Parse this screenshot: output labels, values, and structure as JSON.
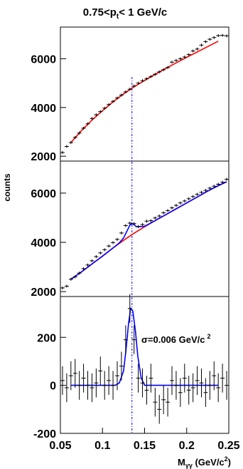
{
  "chart_data": [
    {
      "panel": "top",
      "type": "scatter",
      "title": "0.75<pt< 1 GeV/c",
      "title_parts": [
        "0.75<p",
        "t",
        "< 1 GeV/c"
      ],
      "ylim": [
        1800,
        7300
      ],
      "xlim": [
        0.05,
        0.25
      ],
      "y_ticks": [
        "2000",
        "4000",
        "6000"
      ],
      "y_tick_values": [
        2000,
        4000,
        6000
      ],
      "points": {
        "x": [
          0.0525,
          0.0575,
          0.0625,
          0.0675,
          0.0725,
          0.0775,
          0.0825,
          0.0875,
          0.0925,
          0.0975,
          0.1025,
          0.1075,
          0.1125,
          0.1175,
          0.1225,
          0.1275,
          0.1325,
          0.1375,
          0.1425,
          0.1475,
          0.1525,
          0.1575,
          0.1625,
          0.1675,
          0.1725,
          0.1775,
          0.1825,
          0.1875,
          0.1925,
          0.1975,
          0.2025,
          0.2075,
          0.2125,
          0.2175,
          0.2225,
          0.2275,
          0.2325,
          0.2375,
          0.2425,
          0.2475
        ],
        "y": [
          2150,
          2400,
          2560,
          2770,
          2950,
          3150,
          3330,
          3550,
          3700,
          3830,
          3970,
          4120,
          4250,
          4390,
          4510,
          4640,
          4750,
          4880,
          5000,
          5100,
          5180,
          5270,
          5360,
          5460,
          5550,
          5640,
          5860,
          5930,
          6000,
          6070,
          6170,
          6320,
          6400,
          6560,
          6700,
          6800,
          6870,
          6950,
          6960,
          6940
        ],
        "err": [
          60,
          60,
          60,
          60,
          60,
          60,
          60,
          60,
          60,
          60,
          60,
          60,
          60,
          60,
          60,
          60,
          60,
          60,
          60,
          60,
          60,
          60,
          60,
          60,
          60,
          60,
          60,
          60,
          60,
          60,
          60,
          60,
          60,
          60,
          60,
          60,
          60,
          60,
          60,
          60
        ]
      },
      "fit": {
        "color": "#ff0000",
        "x": [
          0.0625,
          0.075,
          0.0875,
          0.1,
          0.1125,
          0.125,
          0.1375,
          0.15,
          0.1625,
          0.175,
          0.1875,
          0.2,
          0.2125,
          0.225,
          0.2375
        ],
        "y": [
          2560,
          3050,
          3480,
          3870,
          4230,
          4560,
          4850,
          5110,
          5360,
          5600,
          5830,
          6060,
          6280,
          6500,
          6720
        ]
      },
      "marker_line_x": 0.135,
      "marker_line_color": "#0000ff"
    },
    {
      "panel": "middle",
      "type": "scatter",
      "ylim": [
        1800,
        7300
      ],
      "xlim": [
        0.05,
        0.25
      ],
      "y_ticks": [
        "2000",
        "4000",
        "6000"
      ],
      "y_tick_values": [
        2000,
        4000,
        6000
      ],
      "ylabel": "counts",
      "points": {
        "x": [
          0.0525,
          0.0575,
          0.0625,
          0.0675,
          0.0725,
          0.0775,
          0.0825,
          0.0875,
          0.0925,
          0.0975,
          0.1025,
          0.1075,
          0.1125,
          0.1175,
          0.1225,
          0.1275,
          0.1325,
          0.1375,
          0.1425,
          0.1475,
          0.1525,
          0.1575,
          0.1625,
          0.1675,
          0.1725,
          0.1775,
          0.1825,
          0.1875,
          0.1925,
          0.1975,
          0.2025,
          0.2075,
          0.2125,
          0.2175,
          0.2225,
          0.2275,
          0.2325,
          0.2375,
          0.2425,
          0.2475
        ],
        "y": [
          2150,
          2220,
          2500,
          2600,
          2750,
          2930,
          3080,
          3250,
          3420,
          3570,
          3700,
          3850,
          3990,
          4120,
          4380,
          4680,
          4780,
          4760,
          4640,
          4720,
          4860,
          4880,
          4990,
          5070,
          5200,
          5290,
          5400,
          5500,
          5600,
          5680,
          5770,
          5860,
          5950,
          6030,
          6110,
          6200,
          6280,
          6360,
          6440,
          6560
        ],
        "err": [
          60,
          60,
          60,
          60,
          60,
          60,
          60,
          60,
          60,
          60,
          60,
          60,
          60,
          60,
          60,
          60,
          60,
          60,
          60,
          60,
          60,
          60,
          60,
          60,
          60,
          60,
          60,
          60,
          60,
          60,
          60,
          60,
          60,
          60,
          60,
          60,
          60,
          60,
          60,
          60
        ]
      },
      "background_fit": {
        "color": "#ff0000",
        "x": [
          0.0625,
          0.075,
          0.0875,
          0.1,
          0.1125,
          0.125,
          0.1375,
          0.15,
          0.1625,
          0.175,
          0.1875,
          0.2,
          0.2125,
          0.225,
          0.2375,
          0.2475
        ],
        "y": [
          2500,
          2800,
          3120,
          3440,
          3770,
          4080,
          4370,
          4630,
          4880,
          5120,
          5360,
          5600,
          5840,
          6080,
          6300,
          6460
        ]
      },
      "total_fit": {
        "color": "#0000ff",
        "x": [
          0.0625,
          0.075,
          0.0875,
          0.1,
          0.1125,
          0.12,
          0.125,
          0.13,
          0.1325,
          0.135,
          0.1375,
          0.14,
          0.145,
          0.15,
          0.1625,
          0.175,
          0.1875,
          0.2,
          0.2125,
          0.225,
          0.2375,
          0.2475
        ],
        "y": [
          2500,
          2800,
          3120,
          3440,
          3770,
          3980,
          4180,
          4520,
          4700,
          4760,
          4720,
          4640,
          4640,
          4650,
          4880,
          5120,
          5360,
          5600,
          5840,
          6080,
          6300,
          6460
        ]
      },
      "marker_line_x": 0.135,
      "marker_line_color": "#0000ff"
    },
    {
      "panel": "bottom",
      "type": "scatter",
      "ylim": [
        -200,
        370
      ],
      "xlim": [
        0.05,
        0.25
      ],
      "y_ticks": [
        "0",
        "200",
        "-200"
      ],
      "y_tick_values": [
        0,
        200,
        -200
      ],
      "x_ticks": [
        "0.05",
        "0.1",
        "0.15",
        "0.2",
        "0.25"
      ],
      "x_tick_values": [
        0.05,
        0.1,
        0.15,
        0.2,
        0.25
      ],
      "xlabel": "Mγγ (GeV/c2)",
      "xlabel_parts": [
        "M",
        "γγ",
        " (GeV/c",
        "2",
        ")"
      ],
      "annotation": "σ=0.006 GeV/c 2",
      "annotation_parts": [
        "σ=0.006 GeV/c",
        "2"
      ],
      "points": {
        "x": [
          0.0525,
          0.0575,
          0.0625,
          0.0675,
          0.0725,
          0.0775,
          0.0825,
          0.0875,
          0.0925,
          0.0975,
          0.1025,
          0.1075,
          0.1125,
          0.1175,
          0.1225,
          0.1275,
          0.1325,
          0.1375,
          0.1425,
          0.1475,
          0.1525,
          0.1575,
          0.1625,
          0.1675,
          0.1725,
          0.1775,
          0.1825,
          0.1875,
          0.1925,
          0.1975,
          0.2025,
          0.2075,
          0.2125,
          0.2175,
          0.2225,
          0.2275,
          0.2325,
          0.2375,
          0.2425,
          0.2475
        ],
        "y": [
          20,
          -10,
          40,
          50,
          0,
          30,
          0,
          -10,
          10,
          60,
          0,
          20,
          0,
          40,
          80,
          190,
          320,
          190,
          30,
          10,
          -20,
          30,
          -70,
          -100,
          -60,
          -70,
          20,
          0,
          -30,
          30,
          -20,
          -10,
          20,
          10,
          -30,
          0,
          40,
          -10,
          30,
          0
        ],
        "err": [
          60,
          60,
          60,
          60,
          60,
          60,
          60,
          60,
          60,
          60,
          60,
          60,
          60,
          60,
          60,
          60,
          60,
          60,
          60,
          60,
          60,
          60,
          60,
          60,
          60,
          60,
          60,
          60,
          60,
          60,
          60,
          60,
          60,
          60,
          60,
          60,
          60,
          60,
          60,
          60
        ]
      },
      "fit": {
        "color": "#0000ff",
        "x": [
          0.0625,
          0.1,
          0.115,
          0.12,
          0.125,
          0.128,
          0.131,
          0.1335,
          0.136,
          0.139,
          0.142,
          0.146,
          0.15,
          0.16,
          0.2,
          0.2375
        ],
        "y": [
          0,
          0,
          0,
          10,
          60,
          150,
          260,
          320,
          310,
          230,
          120,
          30,
          0,
          0,
          0,
          0
        ]
      },
      "marker_line_x": 0.135,
      "marker_line_color": "#0000ff"
    }
  ]
}
